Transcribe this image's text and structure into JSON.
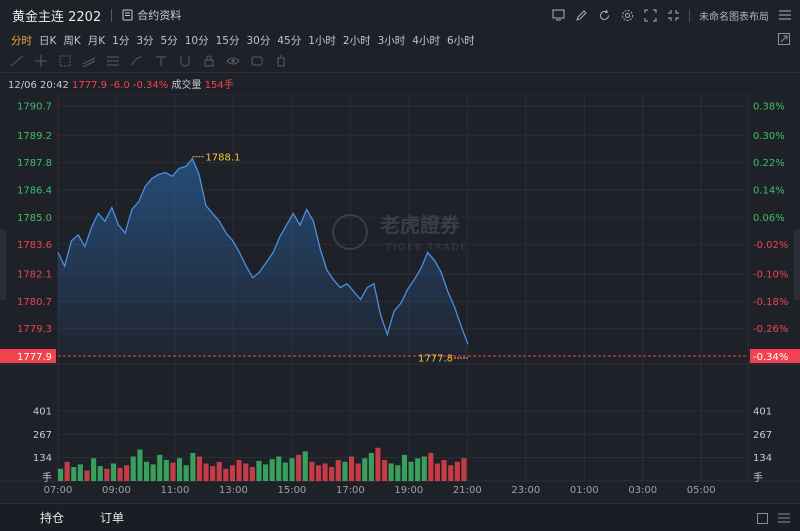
{
  "window": {
    "title": "黄金主连 2202",
    "doc_label": "合约资料",
    "layout_name": "未命名图表布局"
  },
  "toolbar_icons": [
    "screen-icon",
    "edit-icon",
    "refresh-icon",
    "gear-icon",
    "fullscreen-icon",
    "minimize-icon",
    "close-icon"
  ],
  "periods": [
    "分时",
    "日K",
    "周K",
    "月K",
    "1分",
    "3分",
    "5分",
    "10分",
    "15分",
    "30分",
    "45分",
    "1小时",
    "2小时",
    "3小时",
    "4小时",
    "6小时"
  ],
  "active_period": "分时",
  "info": {
    "datetime": "12/06 20:42",
    "price": "1777.9",
    "change": "-6.0",
    "change_pct": "-0.34%",
    "volume_label": "成交量",
    "volume": "154手"
  },
  "bottom_tabs": [
    "持仓",
    "订单"
  ],
  "watermark": {
    "cn": "老虎證券",
    "en": "TIGER TRADE"
  },
  "colors": {
    "line": "#4a8fe0",
    "up": "#3fbf6a",
    "down": "#f0434d",
    "accent": "#f0a83a",
    "bg": "#1f2129"
  },
  "chart_data": {
    "type": "line",
    "price_ticks": [
      "1790.7",
      "1789.2",
      "1787.8",
      "1786.4",
      "1785.0",
      "1783.6",
      "1782.1",
      "1780.7",
      "1779.3"
    ],
    "pct_ticks": [
      "0.38%",
      "0.30%",
      "0.22%",
      "0.14%",
      "0.06%",
      "-0.02%",
      "-0.10%",
      "-0.18%",
      "-0.26%"
    ],
    "current_price_label": "1777.9",
    "current_pct_label": "-0.34%",
    "high_label": "1788.1",
    "low_label": "1777.8",
    "ylim": [
      1777.9,
      1790.7
    ],
    "volume_ticks": [
      "401",
      "267",
      "134"
    ],
    "volume_unit": "手",
    "x_ticks": [
      "07:00",
      "09:00",
      "11:00",
      "13:00",
      "15:00",
      "17:00",
      "19:00",
      "21:00",
      "23:00",
      "01:00",
      "03:00",
      "05:00"
    ],
    "price_series": [
      1783.2,
      1782.5,
      1783.8,
      1784.1,
      1783.5,
      1784.5,
      1785.2,
      1784.8,
      1785.5,
      1784.6,
      1784.2,
      1785.4,
      1785.8,
      1786.6,
      1787.0,
      1787.2,
      1787.3,
      1787.1,
      1787.5,
      1787.6,
      1788.0,
      1787.2,
      1785.6,
      1785.2,
      1784.8,
      1784.2,
      1783.8,
      1783.2,
      1782.5,
      1781.9,
      1782.2,
      1782.7,
      1783.2,
      1784.0,
      1784.6,
      1785.2,
      1784.6,
      1785.4,
      1784.8,
      1783.4,
      1782.3,
      1781.8,
      1781.4,
      1781.6,
      1781.2,
      1780.8,
      1781.4,
      1781.6,
      1780.0,
      1779.0,
      1780.2,
      1780.6,
      1781.3,
      1781.8,
      1782.4,
      1783.2,
      1782.8,
      1782.2,
      1781.2,
      1780.4,
      1779.4,
      1778.5
    ],
    "volume_series": [
      70,
      110,
      80,
      95,
      60,
      130,
      85,
      70,
      100,
      75,
      90,
      140,
      180,
      110,
      95,
      150,
      120,
      105,
      130,
      90,
      160,
      140,
      100,
      85,
      110,
      70,
      90,
      120,
      100,
      80,
      115,
      95,
      125,
      140,
      105,
      130,
      150,
      170,
      110,
      90,
      100,
      80,
      120,
      110,
      140,
      100,
      130,
      160,
      190,
      120,
      100,
      90,
      150,
      110,
      130,
      140,
      160,
      100,
      120,
      90,
      110,
      130
    ]
  }
}
